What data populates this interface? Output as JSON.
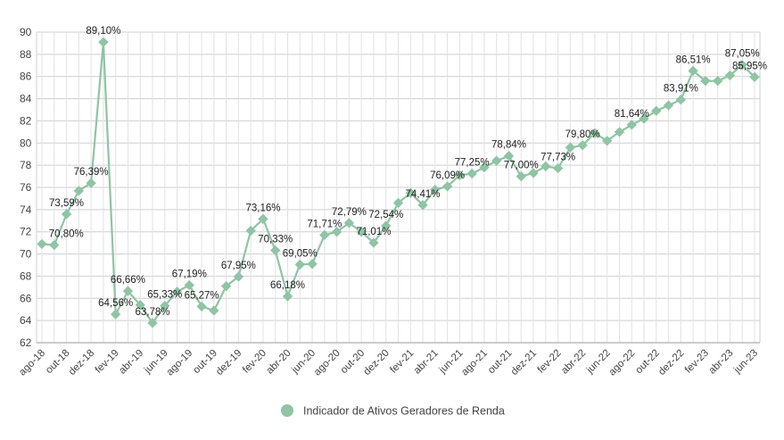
{
  "chart_data": {
    "type": "line",
    "title": "",
    "xlabel": "",
    "ylabel": "",
    "ylim": [
      62,
      90
    ],
    "y_ticks": [
      62,
      64,
      66,
      68,
      70,
      72,
      74,
      76,
      78,
      80,
      82,
      84,
      86,
      88,
      90
    ],
    "grid": true,
    "legend_position": "bottom",
    "series_color": "#8fc4a4",
    "x": [
      "ago-18",
      "set-18",
      "out-18",
      "nov-18",
      "dez-18",
      "jan-19",
      "fev-19",
      "mar-19",
      "abr-19",
      "mai-19",
      "jun-19",
      "jul-19",
      "ago-19",
      "set-19",
      "out-19",
      "nov-19",
      "dez-19",
      "jan-20",
      "fev-20",
      "mar-20",
      "abr-20",
      "mai-20",
      "jun-20",
      "jul-20",
      "ago-20",
      "set-20",
      "out-20",
      "nov-20",
      "dez-20",
      "jan-21",
      "fev-21",
      "mar-21",
      "abr-21",
      "mai-21",
      "jun-21",
      "jul-21",
      "ago-21",
      "set-21",
      "out-21",
      "nov-21",
      "dez-21",
      "jan-22",
      "fev-22",
      "mar-22",
      "abr-22",
      "mai-22",
      "jun-22",
      "jul-22",
      "ago-22",
      "set-22",
      "out-22",
      "nov-22",
      "dez-22",
      "jan-23",
      "fev-23",
      "mar-23",
      "abr-23",
      "mai-23",
      "jun-23"
    ],
    "x_tick_labels": [
      "ago-18",
      "out-18",
      "dez-18",
      "fev-19",
      "abr-19",
      "jun-19",
      "ago-19",
      "out-19",
      "dez-19",
      "fev-20",
      "abr-20",
      "jun-20",
      "ago-20",
      "out-20",
      "dez-20",
      "fev-21",
      "abr-21",
      "jun-21",
      "ago-21",
      "out-21",
      "dez-21",
      "fev-22",
      "abr-22",
      "jun-22",
      "ago-22",
      "out-22",
      "dez-22",
      "fev-23",
      "abr-23",
      "jun-23"
    ],
    "series": [
      {
        "name": "Indicador de Ativos Geradores de Renda",
        "values": [
          70.9,
          70.8,
          73.59,
          75.7,
          76.39,
          89.1,
          64.56,
          66.66,
          65.4,
          63.78,
          65.33,
          66.6,
          67.19,
          65.27,
          64.9,
          67.1,
          67.95,
          72.1,
          73.16,
          70.33,
          66.18,
          69.05,
          69.1,
          71.71,
          72.0,
          72.79,
          72.0,
          71.01,
          72.54,
          74.6,
          75.5,
          74.41,
          75.8,
          76.09,
          77.1,
          77.25,
          77.8,
          78.4,
          78.84,
          77.0,
          77.3,
          77.9,
          77.73,
          79.6,
          79.8,
          80.9,
          80.2,
          81.0,
          81.64,
          82.2,
          82.9,
          83.4,
          83.91,
          86.51,
          85.6,
          85.6,
          86.1,
          87.05,
          85.95
        ]
      }
    ],
    "data_labels": [
      {
        "index": 1,
        "text": "70,80%"
      },
      {
        "index": 2,
        "text": "73,59%"
      },
      {
        "index": 4,
        "text": "76,39%"
      },
      {
        "index": 5,
        "text": "89,10%"
      },
      {
        "index": 6,
        "text": "64,56%"
      },
      {
        "index": 7,
        "text": "66,66%"
      },
      {
        "index": 9,
        "text": "63,78%"
      },
      {
        "index": 10,
        "text": "65,33%"
      },
      {
        "index": 12,
        "text": "67,19%"
      },
      {
        "index": 13,
        "text": "65,27%"
      },
      {
        "index": 16,
        "text": "67,95%"
      },
      {
        "index": 18,
        "text": "73,16%"
      },
      {
        "index": 19,
        "text": "70,33%"
      },
      {
        "index": 20,
        "text": "66,18%"
      },
      {
        "index": 21,
        "text": "69,05%"
      },
      {
        "index": 23,
        "text": "71,71%"
      },
      {
        "index": 25,
        "text": "72,79%"
      },
      {
        "index": 27,
        "text": "71,01%"
      },
      {
        "index": 28,
        "text": "72,54%"
      },
      {
        "index": 31,
        "text": "74,41%"
      },
      {
        "index": 33,
        "text": "76,09%"
      },
      {
        "index": 35,
        "text": "77,25%"
      },
      {
        "index": 38,
        "text": "78,84%"
      },
      {
        "index": 39,
        "text": "77,00%"
      },
      {
        "index": 42,
        "text": "77,73%"
      },
      {
        "index": 44,
        "text": "79,80%"
      },
      {
        "index": 48,
        "text": "81,64%"
      },
      {
        "index": 52,
        "text": "83,91%"
      },
      {
        "index": 53,
        "text": "86,51%"
      },
      {
        "index": 57,
        "text": "87,05%"
      },
      {
        "index": 58,
        "text": "85,95%"
      }
    ]
  }
}
